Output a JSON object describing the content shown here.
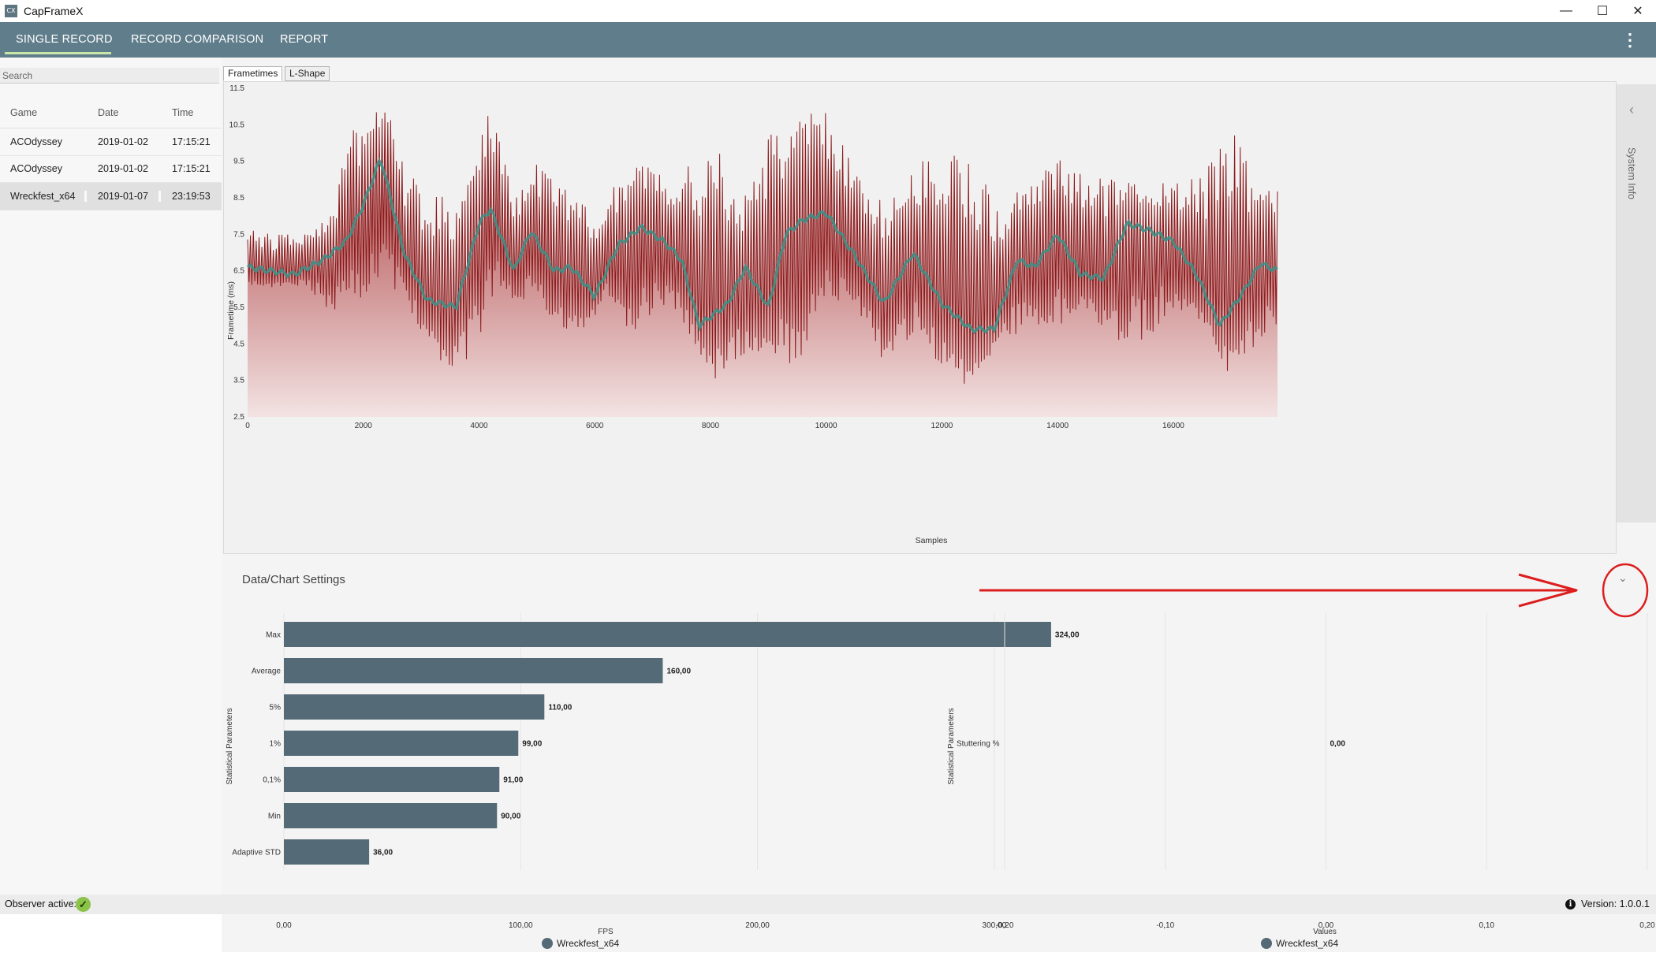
{
  "window": {
    "icon_text": "CX",
    "title": "CapFrameX",
    "min_glyph": "—",
    "max_glyph": "☐",
    "close_glyph": "✕"
  },
  "nav": {
    "tabs": [
      "SINGLE RECORD",
      "RECORD COMPARISON",
      "REPORT"
    ],
    "active_tab": "SINGLE RECORD",
    "menu_glyph": "⋮",
    "accent_color": "#607d8b"
  },
  "sidebar": {
    "search_placeholder": "Search",
    "columns": [
      "Game",
      "Date",
      "Time"
    ],
    "rows": [
      {
        "game": "ACOdyssey",
        "date": "2019-01-02",
        "time": "17:15:21"
      },
      {
        "game": "ACOdyssey",
        "date": "2019-01-02",
        "time": "17:15:21"
      },
      {
        "game": "Wreckfest_x64",
        "date": "2019-01-07",
        "time": "23:19:53",
        "selected": true
      }
    ]
  },
  "chart_tabs": [
    "Frametimes",
    "L-Shape"
  ],
  "active_chart_tab": "Frametimes",
  "system_info": {
    "label": "System Info",
    "chevron_glyph": "‹"
  },
  "settings": {
    "label": "Data/Chart Settings",
    "chevron_glyph": "⌄"
  },
  "status": {
    "observer_label": "Observer active:",
    "observer_glyph": "✓",
    "info_glyph": "i",
    "version": "Version:  1.0.0.1"
  },
  "chart_data": [
    {
      "type": "line",
      "name": "frametimes",
      "xlabel": "Samples",
      "ylabel": "Frametime (ms)",
      "xlim": [
        0,
        17800
      ],
      "ylim": [
        2.5,
        11.5
      ],
      "xticks": [
        0,
        2000,
        4000,
        6000,
        8000,
        10000,
        12000,
        14000,
        16000
      ],
      "yticks": [
        2.5,
        3.5,
        4.5,
        5.5,
        6.5,
        7.5,
        8.5,
        9.5,
        10.5,
        11.5
      ],
      "fill_color": "#b5474a",
      "line_color": "#8b1a1c",
      "avg_color": "#3f8f86",
      "moving_average": {
        "x": [
          0,
          800,
          1300,
          1700,
          2000,
          2300,
          2700,
          3100,
          3600,
          4000,
          4200,
          4600,
          4900,
          5300,
          5600,
          6000,
          6400,
          6800,
          7200,
          7500,
          7800,
          8300,
          8600,
          9000,
          9300,
          9600,
          10000,
          10500,
          11000,
          11500,
          12000,
          12500,
          12900,
          13300,
          13600,
          14000,
          14400,
          14800,
          15200,
          15600,
          16000,
          16400,
          16800,
          17200,
          17500,
          17800
        ],
        "y": [
          6.6,
          6.4,
          6.8,
          7.3,
          8.3,
          9.6,
          7.0,
          5.7,
          5.5,
          7.8,
          8.2,
          6.5,
          7.6,
          6.5,
          6.6,
          5.8,
          7.2,
          7.7,
          7.3,
          6.8,
          5.0,
          5.6,
          6.6,
          5.5,
          7.5,
          7.9,
          8.1,
          6.9,
          5.6,
          7.0,
          5.6,
          4.9,
          4.9,
          6.8,
          6.6,
          7.5,
          6.4,
          6.3,
          7.8,
          7.6,
          7.3,
          6.4,
          5.0,
          5.9,
          6.7,
          6.5
        ]
      },
      "spike_peaks": {
        "x": [
          0,
          500,
          1000,
          1500,
          1800,
          2000,
          2200,
          2300,
          2500,
          2700,
          3000,
          3400,
          3800,
          4100,
          4200,
          4600,
          5000,
          5400,
          5800,
          6200,
          6600,
          7000,
          7300,
          7700,
          8000,
          8500,
          9000,
          9500,
          10000,
          10500,
          11000,
          11500,
          12000,
          12500,
          13000,
          13500,
          14000,
          14500,
          15000,
          15500,
          16000,
          16500,
          17000,
          17500,
          17800
        ],
        "y": [
          7.8,
          7.5,
          7.6,
          8.3,
          10.8,
          10.2,
          10.9,
          11.2,
          11.1,
          9.3,
          9.0,
          8.5,
          9.0,
          10.7,
          11.1,
          8.8,
          9.5,
          8.8,
          8.5,
          8.6,
          9.2,
          9.8,
          8.8,
          9.6,
          11.2,
          8.3,
          10.2,
          10.8,
          10.9,
          9.3,
          8.4,
          9.3,
          10.3,
          9.5,
          8.7,
          8.8,
          9.6,
          9.1,
          9.0,
          8.8,
          9.0,
          9.3,
          10.5,
          9.0,
          9.0
        ]
      },
      "spike_troughs": {
        "x": [
          0,
          500,
          1000,
          1500,
          1800,
          2000,
          2300,
          2700,
          3000,
          3400,
          3800,
          4100,
          4300,
          4600,
          5000,
          5400,
          5800,
          6200,
          6600,
          7000,
          7300,
          7700,
          8000,
          8500,
          9000,
          9500,
          10000,
          10500,
          11000,
          11500,
          12000,
          12500,
          13000,
          13500,
          14000,
          14500,
          15000,
          15500,
          16000,
          16500,
          17000,
          17500,
          17800
        ],
        "y": [
          6.0,
          6.0,
          6.1,
          5.2,
          5.6,
          5.4,
          6.0,
          5.8,
          4.8,
          3.9,
          3.8,
          4.7,
          6.2,
          5.6,
          5.8,
          4.8,
          4.6,
          5.9,
          4.5,
          5.4,
          5.5,
          4.6,
          3.4,
          4.0,
          4.2,
          3.7,
          5.6,
          5.6,
          3.9,
          4.7,
          3.9,
          3.1,
          4.6,
          4.9,
          4.8,
          5.5,
          4.2,
          4.6,
          5.3,
          5.0,
          3.5,
          4.6,
          5.0
        ]
      }
    },
    {
      "type": "bar",
      "name": "fps_parameters",
      "orientation": "horizontal",
      "categories": [
        "Max",
        "Average",
        "5%",
        "1%",
        "0,1%",
        "Min",
        "Adaptive STD"
      ],
      "values": [
        324,
        160,
        110,
        99,
        91,
        90,
        36
      ],
      "value_labels": [
        "324,00",
        "160,00",
        "110,00",
        "99,00",
        "91,00",
        "90,00",
        "36,00"
      ],
      "xlabel": "FPS",
      "ylabel": "Statistical Parameters",
      "xlim": [
        0,
        350
      ],
      "xticks": [
        0,
        100,
        200,
        300
      ],
      "xtick_labels": [
        "0,00",
        "100,00",
        "200,00",
        "300,00"
      ],
      "series_name": "Wreckfest_x64",
      "bar_color": "#546a76"
    },
    {
      "type": "bar",
      "name": "stuttering",
      "orientation": "horizontal",
      "categories": [
        "Stuttering %"
      ],
      "values": [
        0
      ],
      "value_labels": [
        "0,00"
      ],
      "xlabel": "Values",
      "ylabel": "Statistical Parameters",
      "xlim": [
        -0.2,
        0.2
      ],
      "xticks": [
        -0.2,
        -0.1,
        0,
        0.1,
        0.2
      ],
      "xtick_labels": [
        "-0,20",
        "-0,10",
        "0,00",
        "0,10",
        "0,20"
      ],
      "series_name": "Wreckfest_x64",
      "bar_color": "#546a76"
    }
  ],
  "annotation": {
    "color": "#dc1e1e"
  }
}
